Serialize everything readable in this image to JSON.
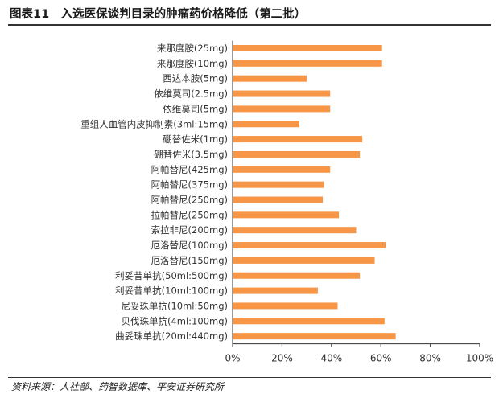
{
  "title": "图表11　入选医保谈判目录的肿瘤药价格降低（第二批）",
  "source": "资料来源：人社部、药智数据库、平安证券研究所",
  "chart_data": {
    "type": "bar",
    "orientation": "horizontal",
    "categories": [
      "来那度胺(25mg)",
      "来那度胺(10mg)",
      "西达本胺(5mg)",
      "依维莫司(2.5mg)",
      "依维莫司(5mg)",
      "重组人血管内皮抑制素(3ml:15mg)",
      "硼替佐米(1mg)",
      "硼替佐米(3.5mg)",
      "阿帕替尼(425mg)",
      "阿帕替尼(375mg)",
      "阿帕替尼(250mg)",
      "拉帕替尼(250mg)",
      "索拉非尼(200mg)",
      "厄洛替尼(100mg)",
      "厄洛替尼(150mg)",
      "利妥昔单抗(50ml:500mg)",
      "利妥昔单抗(10ml:100mg)",
      "尼妥珠单抗(10ml:50mg)",
      "贝伐珠单抗(4ml:100mg)",
      "曲妥珠单抗(20ml:440mg)"
    ],
    "values": [
      60.5,
      60.5,
      30,
      39.5,
      39.5,
      27,
      52.5,
      51.5,
      39.5,
      37,
      36.5,
      43,
      50,
      62,
      57.5,
      51.5,
      34.5,
      42.5,
      61.5,
      66
    ],
    "xlim": [
      0,
      100
    ],
    "xticks": [
      "0%",
      "20%",
      "40%",
      "60%",
      "80%",
      "100%"
    ],
    "xtick_values": [
      0,
      20,
      40,
      60,
      80,
      100
    ],
    "bar_color": "#F79646",
    "axis_color": "#333333",
    "grid": false
  }
}
